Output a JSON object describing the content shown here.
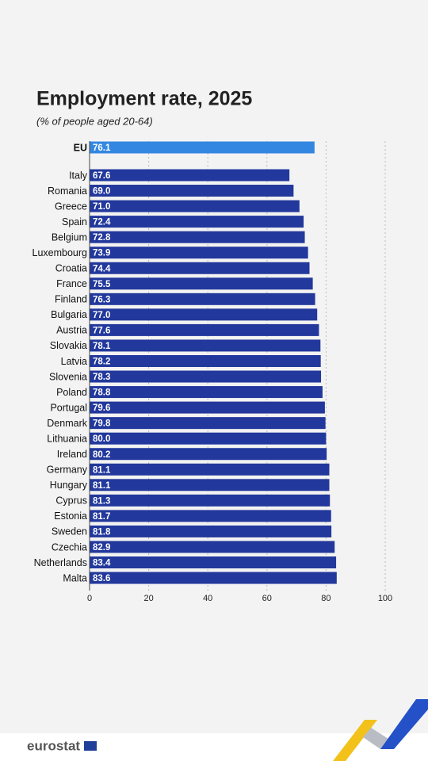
{
  "chart_data": {
    "type": "bar",
    "orientation": "horizontal",
    "title": "Employment rate, 2025",
    "subtitle": "(% of people aged 20-64)",
    "categories": [
      "EU",
      "Italy",
      "Romania",
      "Greece",
      "Spain",
      "Belgium",
      "Luxembourg",
      "Croatia",
      "France",
      "Finland",
      "Bulgaria",
      "Austria",
      "Slovakia",
      "Latvia",
      "Slovenia",
      "Poland",
      "Portugal",
      "Denmark",
      "Lithuania",
      "Ireland",
      "Germany",
      "Hungary",
      "Cyprus",
      "Estonia",
      "Sweden",
      "Czechia",
      "Netherlands",
      "Malta"
    ],
    "values": [
      76.1,
      67.6,
      69.0,
      71.0,
      72.4,
      72.8,
      73.9,
      74.4,
      75.5,
      76.3,
      77.0,
      77.6,
      78.1,
      78.2,
      78.3,
      78.8,
      79.6,
      79.8,
      80.0,
      80.2,
      81.1,
      81.1,
      81.3,
      81.7,
      81.8,
      82.9,
      83.4,
      83.6
    ],
    "value_labels": [
      "76.1",
      "67.6",
      "69.0",
      "71.0",
      "72.4",
      "72.8",
      "73.9",
      "74.4",
      "75.5",
      "76.3",
      "77.0",
      "77.6",
      "78.1",
      "78.2",
      "78.3",
      "78.8",
      "79.6",
      "79.8",
      "80.0",
      "80.2",
      "81.1",
      "81.1",
      "81.3",
      "81.7",
      "81.8",
      "82.9",
      "83.4",
      "83.6"
    ],
    "colors": [
      "#3387e0",
      "#22389c",
      "#22389c",
      "#22389c",
      "#22389c",
      "#22389c",
      "#22389c",
      "#22389c",
      "#22389c",
      "#22389c",
      "#22389c",
      "#22389c",
      "#22389c",
      "#22389c",
      "#22389c",
      "#22389c",
      "#22389c",
      "#22389c",
      "#22389c",
      "#22389c",
      "#22389c",
      "#22389c",
      "#22389c",
      "#22389c",
      "#22389c",
      "#22389c",
      "#22389c",
      "#22389c"
    ],
    "xlim": [
      0,
      100
    ],
    "xticks": [
      0,
      20,
      40,
      60,
      80,
      100
    ],
    "grid": true
  },
  "footer": {
    "brand": "eurostat"
  }
}
